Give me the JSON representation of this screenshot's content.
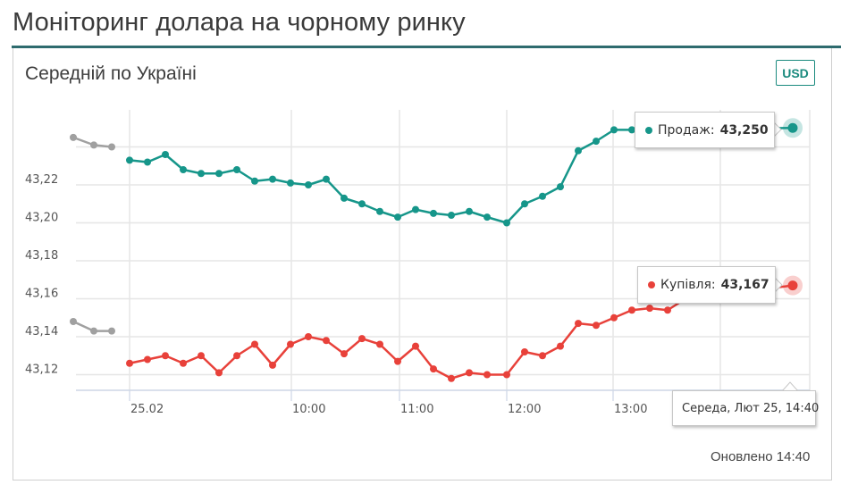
{
  "page": {
    "title": "Моніторинг долара на чорному ринку"
  },
  "card": {
    "title": "Середній по Україні",
    "currency_button": "USD",
    "updated_label": "Оновлено 14:40"
  },
  "tooltips": {
    "sell": {
      "label": "Продаж:",
      "value": "43,250",
      "color": "#16968a"
    },
    "buy": {
      "label": "Купівля:",
      "value": "43,167",
      "color": "#e8413a"
    },
    "date": "Середа, Лют 25, 14:40"
  },
  "colors": {
    "sell": "#16968a",
    "buy": "#e8413a",
    "previous": "#a0a0a0",
    "grid": "#e6e6e6",
    "accent_rule": "#2e6b6e"
  },
  "chart_data": {
    "type": "line",
    "title": "Середній по Україні",
    "xlabel": "",
    "ylabel": "",
    "x_tick_labels": [
      "25.02",
      "10:00",
      "11:00",
      "12:00",
      "13:00"
    ],
    "y_tick_labels": [
      "43,22",
      "43,20",
      "43,18",
      "43,16",
      "43,14",
      "43,12"
    ],
    "ylim": [
      43.112,
      43.245
    ],
    "grid": true,
    "legend": "none (tooltips)",
    "series": [
      {
        "name": "Продаж (previous day)",
        "color": "#a0a0a0",
        "points": [
          [
            82,
            43.245
          ],
          [
            105,
            43.241
          ],
          [
            125,
            43.24
          ]
        ]
      },
      {
        "name": "Продаж",
        "color": "#16968a",
        "points": [
          [
            145,
            43.233
          ],
          [
            165,
            43.232
          ],
          [
            185,
            43.236
          ],
          [
            205,
            43.228
          ],
          [
            225,
            43.226
          ],
          [
            245,
            43.226
          ],
          [
            265,
            43.228
          ],
          [
            285,
            43.222
          ],
          [
            305,
            43.223
          ],
          [
            325,
            43.221
          ],
          [
            345,
            43.22
          ],
          [
            365,
            43.223
          ],
          [
            385,
            43.213
          ],
          [
            405,
            43.21
          ],
          [
            425,
            43.206
          ],
          [
            445,
            43.203
          ],
          [
            465,
            43.207
          ],
          [
            485,
            43.205
          ],
          [
            505,
            43.204
          ],
          [
            525,
            43.206
          ],
          [
            545,
            43.203
          ],
          [
            567,
            43.2
          ],
          [
            587,
            43.21
          ],
          [
            607,
            43.214
          ],
          [
            627,
            43.219
          ],
          [
            647,
            43.238
          ],
          [
            667,
            43.243
          ],
          [
            687,
            43.249
          ],
          [
            707,
            43.249
          ],
          [
            887,
            43.25
          ]
        ]
      },
      {
        "name": "Купівля (previous day)",
        "color": "#a0a0a0",
        "points": [
          [
            82,
            43.148
          ],
          [
            105,
            43.143
          ],
          [
            125,
            43.143
          ]
        ]
      },
      {
        "name": "Купівля",
        "color": "#e8413a",
        "points": [
          [
            145,
            43.126
          ],
          [
            165,
            43.128
          ],
          [
            185,
            43.13
          ],
          [
            205,
            43.126
          ],
          [
            225,
            43.13
          ],
          [
            245,
            43.121
          ],
          [
            265,
            43.13
          ],
          [
            285,
            43.136
          ],
          [
            305,
            43.125
          ],
          [
            325,
            43.136
          ],
          [
            345,
            43.14
          ],
          [
            365,
            43.138
          ],
          [
            385,
            43.131
          ],
          [
            405,
            43.139
          ],
          [
            425,
            43.136
          ],
          [
            445,
            43.127
          ],
          [
            465,
            43.135
          ],
          [
            485,
            43.123
          ],
          [
            505,
            43.118
          ],
          [
            525,
            43.121
          ],
          [
            545,
            43.12
          ],
          [
            567,
            43.12
          ],
          [
            587,
            43.132
          ],
          [
            607,
            43.13
          ],
          [
            627,
            43.135
          ],
          [
            647,
            43.147
          ],
          [
            667,
            43.146
          ],
          [
            687,
            43.15
          ],
          [
            707,
            43.154
          ],
          [
            727,
            43.155
          ],
          [
            747,
            43.154
          ],
          [
            767,
            43.16
          ],
          [
            887,
            43.167
          ]
        ]
      }
    ],
    "current_values": {
      "sell": 43.25,
      "buy": 43.167,
      "time": "14:40"
    }
  }
}
